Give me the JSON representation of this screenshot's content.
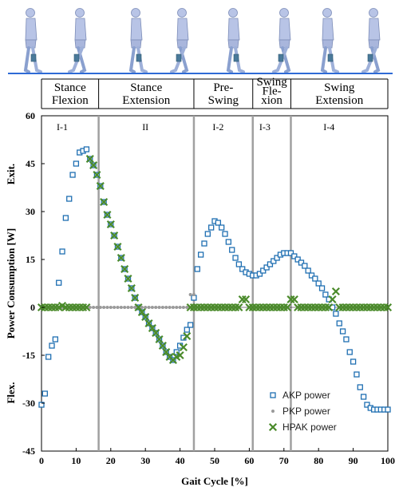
{
  "chart_data": {
    "type": "scatter",
    "title": "",
    "xlabel": "Gait Cycle [%]",
    "ylabel": "Power Consumption [W]",
    "ylabel_positive": "Exit.",
    "ylabel_negative": "Flex.",
    "xlim": [
      0,
      100
    ],
    "ylim": [
      -45,
      60
    ],
    "xticks": [
      "0",
      "10",
      "20",
      "30",
      "40",
      "50",
      "60",
      "70",
      "80",
      "90",
      "100"
    ],
    "yticks": [
      "-45",
      "-30",
      "-15",
      "0",
      "15",
      "30",
      "45",
      "60"
    ],
    "phases": [
      {
        "label_lines": [
          "Stance",
          "Flexion"
        ],
        "start": 0,
        "end": 16.5
      },
      {
        "label_lines": [
          "Stance",
          "Extension"
        ],
        "start": 16.5,
        "end": 44
      },
      {
        "label_lines": [
          "Pre-",
          "Swing"
        ],
        "start": 44,
        "end": 61
      },
      {
        "label_lines": [
          "Swing",
          "Fle-",
          "xion"
        ],
        "start": 61,
        "end": 72
      },
      {
        "label_lines": [
          "Swing",
          "Extension"
        ],
        "start": 72,
        "end": 100
      }
    ],
    "phase_boundaries": [
      16.5,
      44,
      61,
      72
    ],
    "regions": [
      {
        "label": "I-1",
        "x": 6
      },
      {
        "label": "II",
        "x": 30
      },
      {
        "label": "I-2",
        "x": 51
      },
      {
        "label": "I-3",
        "x": 64.5
      },
      {
        "label": "I-4",
        "x": 83
      }
    ],
    "legend_position": "lower-right",
    "series": [
      {
        "name": "AKP power",
        "marker": "open-square",
        "color": "#1f6fb2",
        "x": [
          0,
          1,
          2,
          3,
          4,
          5,
          6,
          7,
          8,
          9,
          10,
          11,
          12,
          13,
          14,
          15,
          16,
          17,
          18,
          19,
          20,
          21,
          22,
          23,
          24,
          25,
          26,
          27,
          28,
          29,
          30,
          31,
          32,
          33,
          34,
          35,
          36,
          37,
          38,
          39,
          40,
          41,
          42,
          43,
          44,
          45,
          46,
          47,
          48,
          49,
          50,
          51,
          52,
          53,
          54,
          55,
          56,
          57,
          58,
          59,
          60,
          61,
          62,
          63,
          64,
          65,
          66,
          67,
          68,
          69,
          70,
          71,
          72,
          73,
          74,
          75,
          76,
          77,
          78,
          79,
          80,
          81,
          82,
          83,
          84,
          85,
          86,
          87,
          88,
          89,
          90,
          91,
          92,
          93,
          94,
          95,
          96,
          97,
          98,
          99,
          100
        ],
        "y": [
          -30.5,
          -27,
          -15.5,
          -12,
          -10,
          7.7,
          17.5,
          28,
          34,
          41.5,
          45,
          48.5,
          49,
          49.5,
          46.5,
          44.5,
          41.5,
          38,
          33,
          29,
          26,
          22.5,
          19,
          15.5,
          12,
          9,
          6,
          3,
          0,
          -1.5,
          -3,
          -5,
          -6.5,
          -8,
          -10,
          -12,
          -14,
          -15.5,
          -16.5,
          -14,
          -12,
          -9.5,
          -7,
          -5.5,
          3,
          12,
          16.5,
          20,
          23,
          25,
          27,
          26.5,
          25,
          23,
          20.5,
          18,
          15.5,
          13.5,
          12,
          11,
          10.5,
          10,
          10,
          10.5,
          11.5,
          12.5,
          13.5,
          14.5,
          15.5,
          16.5,
          17,
          17,
          17,
          16,
          15,
          14,
          13,
          11.5,
          10,
          9,
          7.5,
          6,
          4,
          2.5,
          0,
          -2,
          -5,
          -7.5,
          -10,
          -14,
          -17,
          -21,
          -25,
          -28,
          -30.5,
          -31.5,
          -32,
          -32,
          -32,
          -32,
          -32
        ]
      },
      {
        "name": "PKP power",
        "marker": "dot",
        "color": "#9a9a9a",
        "x": [
          0,
          1,
          2,
          3,
          4,
          5,
          6,
          7,
          8,
          9,
          10,
          11,
          12,
          13,
          14,
          15,
          16,
          17,
          18,
          19,
          20,
          21,
          22,
          23,
          24,
          25,
          26,
          27,
          28,
          29,
          30,
          31,
          32,
          33,
          34,
          35,
          36,
          37,
          38,
          39,
          40,
          41,
          42,
          43,
          44
        ],
        "y": [
          0,
          0,
          0,
          0,
          0,
          0,
          0,
          0,
          0,
          0,
          0,
          0,
          0,
          0,
          0,
          0,
          0,
          0,
          0,
          0,
          0,
          0,
          0,
          0,
          0,
          0,
          0,
          0,
          0,
          0,
          0,
          0,
          0,
          0,
          0,
          0,
          0,
          0,
          0,
          0,
          0,
          0,
          0,
          4,
          4
        ]
      },
      {
        "name": "HPAK power",
        "marker": "x",
        "color": "#4a8a2a",
        "x": [
          0,
          1,
          2,
          3,
          4,
          5,
          6,
          7,
          8,
          9,
          10,
          11,
          12,
          13,
          14,
          15,
          16,
          17,
          18,
          19,
          20,
          21,
          22,
          23,
          24,
          25,
          26,
          27,
          28,
          29,
          30,
          31,
          32,
          33,
          34,
          35,
          36,
          37,
          38,
          39,
          40,
          41,
          42,
          43,
          44,
          45,
          46,
          47,
          48,
          49,
          50,
          51,
          52,
          53,
          54,
          55,
          56,
          57,
          58,
          59,
          60,
          61,
          62,
          63,
          64,
          65,
          66,
          67,
          68,
          69,
          70,
          71,
          72,
          73,
          74,
          75,
          76,
          77,
          78,
          79,
          80,
          81,
          82,
          83,
          84,
          85,
          86,
          87,
          88,
          89,
          90,
          91,
          92,
          93,
          94,
          95,
          96,
          97,
          98,
          99,
          100
        ],
        "y": [
          0,
          0,
          0,
          0,
          0,
          0,
          0.5,
          0,
          0,
          0,
          0,
          0,
          0,
          0,
          46.5,
          44.5,
          41.5,
          38,
          33,
          29,
          26,
          22.5,
          19,
          15.5,
          12,
          9,
          6,
          3,
          0,
          -1.5,
          -3,
          -5,
          -6.5,
          -8,
          -10,
          -12,
          -14,
          -15.5,
          -16.5,
          -15.5,
          -15,
          -12.5,
          -9,
          0,
          0,
          0,
          0,
          0,
          0,
          0,
          0,
          0,
          0,
          0,
          0,
          0,
          0,
          0,
          2.5,
          2.5,
          0,
          0,
          0,
          0,
          0,
          0,
          0,
          0,
          0,
          0,
          0,
          0,
          2.5,
          2.5,
          0,
          0,
          0,
          0,
          0,
          0,
          0,
          0,
          0,
          0,
          2.5,
          5,
          0,
          0,
          0,
          0,
          0,
          0,
          0,
          0,
          0,
          0,
          0,
          0,
          0,
          0,
          0
        ]
      }
    ]
  }
}
